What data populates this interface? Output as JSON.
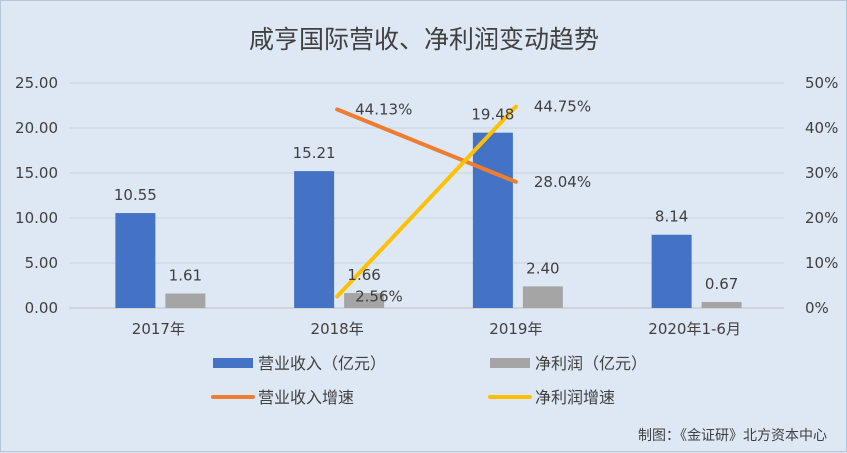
{
  "chart_data": {
    "type": "bar",
    "title": "咸亨国际营收、净利润变动趋势",
    "categories": [
      "2017年",
      "2018年",
      "2019年",
      "2020年1-6月"
    ],
    "y_left": {
      "ylim": [
        0,
        25
      ],
      "ticks": [
        "0.00",
        "5.00",
        "10.00",
        "15.00",
        "20.00",
        "25.00"
      ]
    },
    "y_right": {
      "ylim": [
        0,
        50
      ],
      "ticks": [
        "0%",
        "10%",
        "20%",
        "30%",
        "40%",
        "50%"
      ]
    },
    "bar_series": [
      {
        "name": "营业收入（亿元）",
        "color": "#4472c4",
        "values": [
          10.55,
          15.21,
          19.48,
          8.14
        ],
        "labels": [
          "10.55",
          "15.21",
          "19.48",
          "8.14"
        ]
      },
      {
        "name": "净利润（亿元）",
        "color": "#a5a5a5",
        "values": [
          1.61,
          1.66,
          2.4,
          0.67
        ],
        "labels": [
          "1.61",
          "1.66",
          "2.40",
          "0.67"
        ]
      }
    ],
    "line_series": [
      {
        "name": "营业收入增速",
        "color": "#ed7d31",
        "axis": "right",
        "points": [
          {
            "category": "2018年",
            "value": 44.13,
            "label": "44.13%"
          },
          {
            "category": "2019年",
            "value": 28.04,
            "label": "28.04%"
          }
        ]
      },
      {
        "name": "净利润增速",
        "color": "#ffc000",
        "axis": "right",
        "points": [
          {
            "category": "2018年",
            "value": 2.56,
            "label": "2.56%"
          },
          {
            "category": "2019年",
            "value": 44.75,
            "label": "44.75%"
          }
        ]
      }
    ],
    "legend_position": "bottom",
    "grid": true
  },
  "source": "制图：《金证研》北方资本中心"
}
